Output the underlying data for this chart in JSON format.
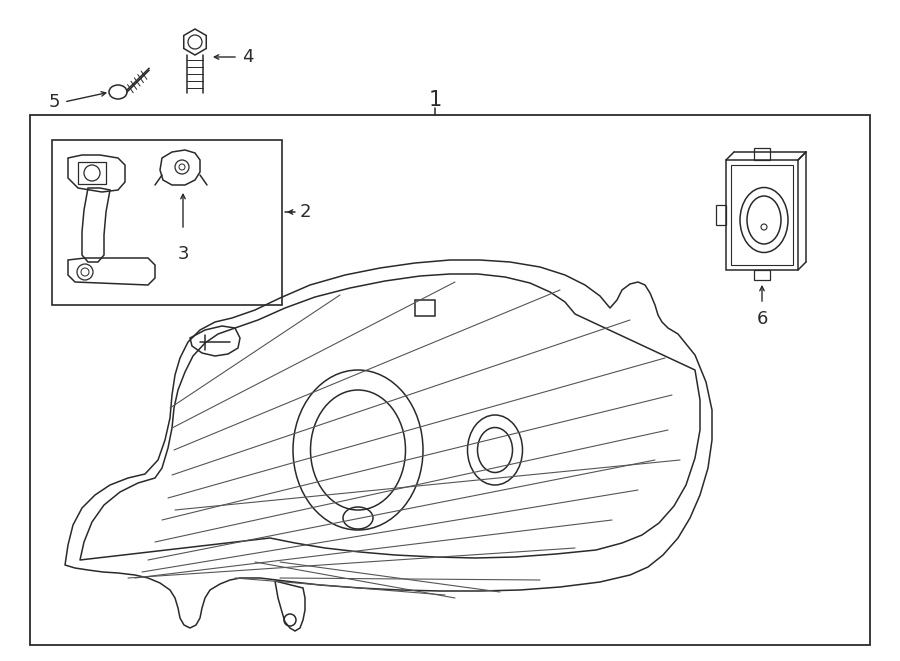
{
  "bg_color": "#ffffff",
  "line_color": "#2a2a2a",
  "title": "1",
  "label2": "2",
  "label3": "3",
  "label4": "4",
  "label5": "5",
  "label6": "6",
  "font_size_label": 13
}
